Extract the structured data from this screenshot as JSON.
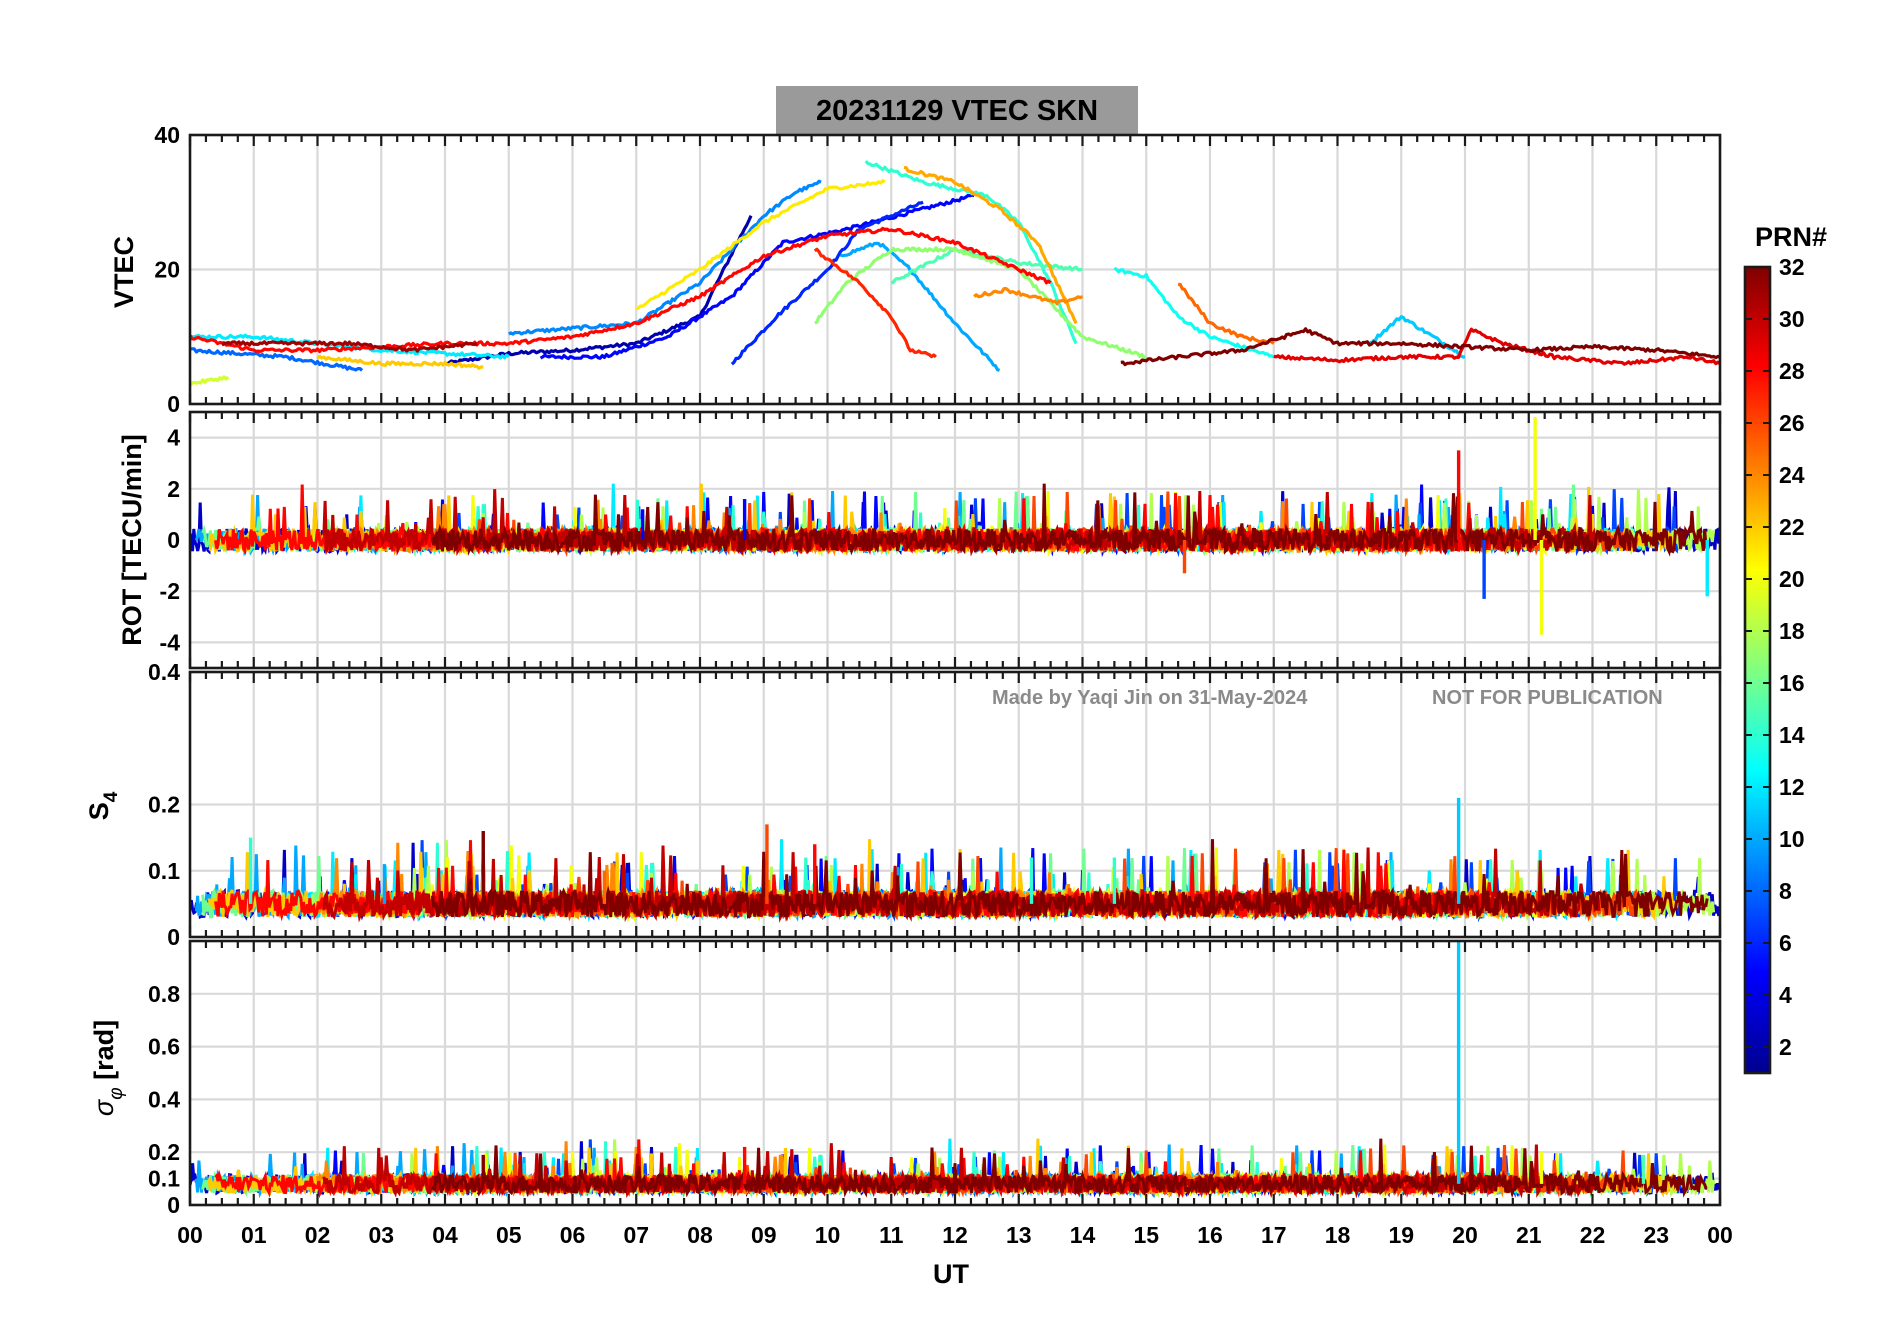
{
  "chart_data": [
    {
      "type": "line",
      "panel": "vtec",
      "title": "20231129    VTEC  SKN",
      "title_parts": {
        "date": "20231129",
        "quantity": "VTEC",
        "station": "SKN"
      },
      "ylabel": "VTEC",
      "ylim": [
        0,
        40
      ],
      "yticks": [
        0,
        20,
        40
      ],
      "xlim": [
        0,
        24
      ],
      "grid": true,
      "series": [
        {
          "name": "PRN 2",
          "prn": 2,
          "points": [
            [
              4.0,
              6
            ],
            [
              5.0,
              7.5
            ],
            [
              6.0,
              8
            ],
            [
              7.0,
              9
            ],
            [
              8.0,
              13
            ],
            [
              8.8,
              28
            ]
          ]
        },
        {
          "name": "PRN 5",
          "prn": 5,
          "points": [
            [
              5.5,
              7
            ],
            [
              6.5,
              7
            ],
            [
              7.5,
              10
            ],
            [
              8.5,
              16
            ],
            [
              9.3,
              24
            ],
            [
              10.3,
              26
            ],
            [
              11.5,
              29
            ],
            [
              12.3,
              31
            ]
          ]
        },
        {
          "name": "PRN 6",
          "prn": 6,
          "points": [
            [
              8.5,
              6
            ],
            [
              9.2,
              13
            ],
            [
              10.0,
              20
            ],
            [
              10.5,
              26
            ],
            [
              11.5,
              30
            ]
          ]
        },
        {
          "name": "PRN 8",
          "prn": 8,
          "points": [
            [
              0.0,
              8
            ],
            [
              1.5,
              7
            ],
            [
              2.7,
              5
            ]
          ]
        },
        {
          "name": "PRN 9",
          "prn": 9,
          "points": [
            [
              5.0,
              10.5
            ],
            [
              7.0,
              12
            ],
            [
              8.0,
              18
            ],
            [
              9.0,
              28
            ],
            [
              9.5,
              31.5
            ],
            [
              9.9,
              33
            ]
          ]
        },
        {
          "name": "PRN 10",
          "prn": 10,
          "points": [
            [
              10.2,
              22
            ],
            [
              10.8,
              24
            ],
            [
              11.3,
              20
            ],
            [
              12.0,
              12
            ],
            [
              12.7,
              5
            ]
          ]
        },
        {
          "name": "PRN 11",
          "prn": 11,
          "points": [
            [
              18.5,
              9
            ],
            [
              19.0,
              13
            ],
            [
              19.5,
              10
            ],
            [
              20.0,
              7
            ]
          ]
        },
        {
          "name": "PRN 12",
          "prn": 12,
          "points": [
            [
              0.0,
              10
            ],
            [
              1.0,
              10
            ],
            [
              2.0,
              9
            ],
            [
              3.0,
              8
            ],
            [
              4.0,
              7.5
            ],
            [
              5.0,
              7
            ]
          ]
        },
        {
          "name": "PRN 13",
          "prn": 13,
          "points": [
            [
              14.5,
              20
            ],
            [
              15.0,
              19
            ],
            [
              15.5,
              13
            ],
            [
              16.0,
              10
            ],
            [
              17.0,
              7
            ]
          ]
        },
        {
          "name": "PRN 14",
          "prn": 14,
          "points": [
            [
              10.6,
              36
            ],
            [
              11.5,
              33
            ],
            [
              12.5,
              31
            ],
            [
              13.0,
              27
            ],
            [
              13.5,
              18
            ],
            [
              13.9,
              9
            ]
          ]
        },
        {
          "name": "PRN 15",
          "prn": 15,
          "points": [
            [
              11.0,
              18
            ],
            [
              12.0,
              23
            ],
            [
              13.0,
              21
            ],
            [
              14.0,
              20
            ]
          ]
        },
        {
          "name": "PRN 17",
          "prn": 17,
          "points": [
            [
              9.8,
              12
            ],
            [
              10.3,
              18
            ],
            [
              11.0,
              23
            ],
            [
              12.0,
              23
            ],
            [
              13.0,
              20
            ],
            [
              14.0,
              10
            ],
            [
              15.0,
              7
            ]
          ]
        },
        {
          "name": "PRN 19",
          "prn": 19,
          "points": [
            [
              0.0,
              3
            ],
            [
              0.6,
              4
            ]
          ]
        },
        {
          "name": "PRN 21",
          "prn": 21,
          "points": [
            [
              7.0,
              14
            ],
            [
              8.0,
              20
            ],
            [
              9.0,
              27
            ],
            [
              10.0,
              32
            ],
            [
              10.9,
              33
            ]
          ]
        },
        {
          "name": "PRN 22",
          "prn": 22,
          "points": [
            [
              2.0,
              7
            ],
            [
              3.0,
              6
            ],
            [
              4.0,
              6
            ],
            [
              4.6,
              5.5
            ]
          ]
        },
        {
          "name": "PRN 23",
          "prn": 23,
          "points": [
            [
              11.2,
              35
            ],
            [
              12.0,
              33
            ],
            [
              12.7,
              29
            ],
            [
              13.3,
              24
            ],
            [
              13.9,
              12
            ]
          ]
        },
        {
          "name": "PRN 24",
          "prn": 24,
          "points": [
            [
              12.3,
              16
            ],
            [
              12.8,
              17
            ],
            [
              13.2,
              16
            ],
            [
              13.6,
              15
            ],
            [
              14.0,
              16
            ]
          ]
        },
        {
          "name": "PRN 25",
          "prn": 25,
          "points": [
            [
              15.5,
              18
            ],
            [
              16.0,
              12
            ],
            [
              16.5,
              10
            ],
            [
              17.0,
              9
            ]
          ]
        },
        {
          "name": "PRN 27",
          "prn": 27,
          "points": [
            [
              9.8,
              23
            ],
            [
              10.5,
              18
            ],
            [
              11.0,
              13
            ],
            [
              11.3,
              8
            ],
            [
              11.7,
              7
            ]
          ]
        },
        {
          "name": "PRN 28",
          "prn": 28,
          "points": [
            [
              0.0,
              10
            ],
            [
              1.0,
              8
            ],
            [
              2.0,
              8
            ],
            [
              3.0,
              8.5
            ],
            [
              4.0,
              9
            ],
            [
              5.0,
              9
            ],
            [
              6.0,
              10
            ],
            [
              7.0,
              12
            ],
            [
              8.0,
              16
            ],
            [
              9.0,
              22
            ],
            [
              10.0,
              25
            ],
            [
              11.0,
              26
            ],
            [
              12.0,
              24
            ],
            [
              13.0,
              20
            ],
            [
              13.5,
              18
            ]
          ]
        },
        {
          "name": "PRN 29",
          "prn": 29,
          "points": [
            [
              17.0,
              7
            ],
            [
              18.0,
              6.5
            ],
            [
              19.0,
              7
            ],
            [
              19.9,
              7
            ],
            [
              20.1,
              11
            ],
            [
              20.6,
              9
            ],
            [
              21.4,
              7
            ],
            [
              22.5,
              6
            ],
            [
              23.5,
              7
            ],
            [
              24.0,
              6
            ]
          ]
        },
        {
          "name": "PRN 31",
          "prn": 31,
          "points": [
            [
              0.5,
              9
            ],
            [
              1.5,
              9
            ],
            [
              2.5,
              9
            ],
            [
              3.5,
              8
            ],
            [
              4.5,
              9
            ]
          ]
        },
        {
          "name": "PRN 32",
          "prn": 32,
          "points": [
            [
              14.6,
              6
            ],
            [
              15.5,
              7
            ],
            [
              16.5,
              8
            ],
            [
              17.5,
              11
            ],
            [
              18.0,
              9
            ],
            [
              19.0,
              9
            ],
            [
              20.0,
              8.5
            ],
            [
              21.0,
              8
            ],
            [
              22.0,
              8.5
            ],
            [
              23.0,
              8
            ],
            [
              24.0,
              7
            ]
          ]
        }
      ]
    },
    {
      "type": "line",
      "panel": "rot",
      "ylabel": "ROT [TECU/min]",
      "ylim": [
        -5,
        5
      ],
      "yticks": [
        -4,
        -2,
        0,
        2,
        4
      ],
      "xlim": [
        0,
        24
      ],
      "grid": true,
      "typical_range": [
        -0.5,
        0.5
      ],
      "notable_values": [
        {
          "prn": 7,
          "x": 20.3,
          "y": -2.3
        },
        {
          "prn": 28,
          "x": 19.9,
          "y": 3.5
        },
        {
          "prn": 20,
          "x": 21.1,
          "y": 4.8
        },
        {
          "prn": 20,
          "x": 21.2,
          "y": -3.7
        },
        {
          "prn": 12,
          "x": 23.8,
          "y": -2.2
        },
        {
          "prn": 5,
          "x": 8.7,
          "y": 1.6
        },
        {
          "prn": 5,
          "x": 7.1,
          "y": 1.2
        },
        {
          "prn": 26,
          "x": 15.6,
          "y": -1.3
        }
      ]
    },
    {
      "type": "line",
      "panel": "s4",
      "ylabel": "S4",
      "ylim": [
        0,
        0.4
      ],
      "yticks": [
        0,
        0.1,
        0.2,
        0.4
      ],
      "xlim": [
        0,
        24
      ],
      "grid": true,
      "typical_range": [
        0.03,
        0.08
      ],
      "spikes": [
        {
          "prn": 14,
          "x": 0.95,
          "y": 0.15
        },
        {
          "prn": 10,
          "x": 3.05,
          "y": 0.11
        },
        {
          "prn": 32,
          "x": 4.6,
          "y": 0.16
        },
        {
          "prn": 25,
          "x": 6.5,
          "y": 0.1
        },
        {
          "prn": 26,
          "x": 9.05,
          "y": 0.17
        },
        {
          "prn": 28,
          "x": 9.8,
          "y": 0.14
        },
        {
          "prn": 14,
          "x": 13.2,
          "y": 0.12
        },
        {
          "prn": 14,
          "x": 14.5,
          "y": 0.12
        },
        {
          "prn": 11,
          "x": 19.9,
          "y": 0.21
        }
      ]
    },
    {
      "type": "line",
      "panel": "sigma_phi",
      "ylabel": "σφ [rad]",
      "ylim": [
        0,
        1
      ],
      "yticks": [
        0,
        0.1,
        0.2,
        0.4,
        0.6,
        0.8
      ],
      "xlim": [
        0,
        24
      ],
      "grid": true,
      "typical_range": [
        0.05,
        0.12
      ],
      "spikes": [
        {
          "prn": 11,
          "x": 19.9,
          "y": 1.0
        },
        {
          "prn": 32,
          "x": 4.6,
          "y": 0.19
        },
        {
          "prn": 28,
          "x": 8.7,
          "y": 0.22
        },
        {
          "prn": 20,
          "x": 21.2,
          "y": 0.2
        },
        {
          "prn": 15,
          "x": 22.8,
          "y": 0.19
        }
      ]
    }
  ],
  "x_axis": {
    "label": "UT",
    "tick_labels": [
      "00",
      "01",
      "02",
      "03",
      "04",
      "05",
      "06",
      "07",
      "08",
      "09",
      "10",
      "11",
      "12",
      "13",
      "14",
      "15",
      "16",
      "17",
      "18",
      "19",
      "20",
      "21",
      "22",
      "23",
      "00"
    ]
  },
  "colorbar": {
    "title": "PRN#",
    "range": [
      1,
      32
    ],
    "tick_labels": [
      "2",
      "4",
      "6",
      "8",
      "10",
      "12",
      "14",
      "16",
      "18",
      "20",
      "22",
      "24",
      "26",
      "28",
      "30",
      "32"
    ],
    "colormap": "jet",
    "colors": [
      "#00008f",
      "#0000ff",
      "#0080ff",
      "#00ffff",
      "#80ff80",
      "#ffff00",
      "#ff8000",
      "#ff0000",
      "#800000"
    ]
  },
  "watermark": {
    "credit": "Made by Yaqi Jin on 31-May-2024",
    "notice": "NOT FOR PUBLICATION"
  }
}
